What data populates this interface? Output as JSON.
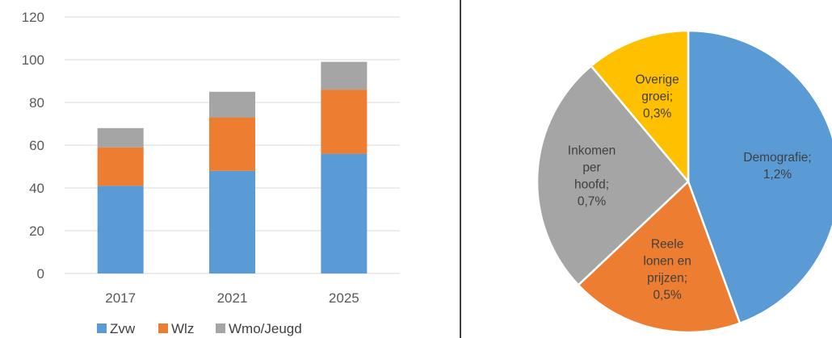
{
  "colors": {
    "zvw": "#5B9BD5",
    "wlz": "#ED7D31",
    "wmo": "#A5A5A5",
    "overige": "#FFC000",
    "grid": "#D9D9D9",
    "divider": "#000000"
  },
  "chart_data": [
    {
      "type": "bar",
      "stacked": true,
      "categories": [
        "2017",
        "2021",
        "2025"
      ],
      "series": [
        {
          "name": "Zvw",
          "values": [
            41,
            48,
            56
          ],
          "color": "#5B9BD5"
        },
        {
          "name": "Wlz",
          "values": [
            18,
            25,
            30
          ],
          "color": "#ED7D31"
        },
        {
          "name": "Wmo/Jeugd",
          "values": [
            9,
            12,
            13
          ],
          "color": "#A5A5A5"
        }
      ],
      "yticks": [
        "0",
        "20",
        "40",
        "60",
        "80",
        "100",
        "120"
      ],
      "ylim": [
        0,
        120
      ],
      "grid": true,
      "legend": "bottom",
      "title": "",
      "xlabel": "",
      "ylabel": ""
    },
    {
      "type": "pie",
      "slices": [
        {
          "label_lines": [
            "Demografie;",
            "1,2%"
          ],
          "value": 1.2,
          "color": "#5B9BD5"
        },
        {
          "label_lines": [
            "Reele",
            "lonen en",
            "prijzen;",
            "0,5%"
          ],
          "value": 0.5,
          "color": "#ED7D31"
        },
        {
          "label_lines": [
            "Inkomen",
            "per",
            "hoofd;",
            "0,7%"
          ],
          "value": 0.7,
          "color": "#A5A5A5"
        },
        {
          "label_lines": [
            "Overige",
            "groei;",
            "0,3%"
          ],
          "value": 0.3,
          "color": "#FFC000"
        }
      ],
      "legend": "none",
      "title": ""
    }
  ]
}
